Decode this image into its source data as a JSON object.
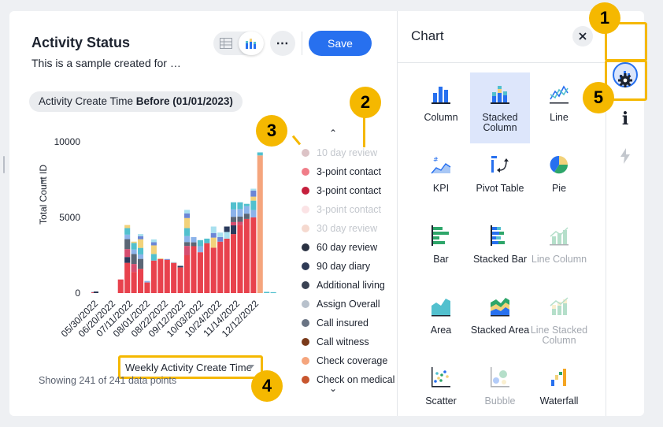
{
  "header": {
    "title": "Activity Status",
    "subtitle": "This is a sample created for …",
    "save_label": "Save",
    "more_label": "⋯"
  },
  "filter": {
    "field": "Activity Create Time",
    "condition": "Before (01/01/2023)"
  },
  "chart_data": {
    "type": "bar",
    "stacked": true,
    "ylabel": "Total Count ID",
    "yticks": [
      0,
      5000,
      10000
    ],
    "ylim": [
      0,
      10000
    ],
    "xticks": [
      "05/30/2022",
      "06/20/2022",
      "07/11/2022",
      "08/01/2022",
      "08/22/2022",
      "09/12/2022",
      "10/03/2022",
      "10/24/2022",
      "11/14/2022",
      "12/12/2022"
    ],
    "weeks": 28,
    "series_values": {
      "3-point contact": [
        50,
        0,
        0,
        0,
        900,
        2000,
        1400,
        1600,
        700,
        2150,
        2250,
        2200,
        2000,
        1700,
        2500,
        3100,
        2700,
        3300,
        3000,
        3400,
        3600,
        3900,
        4500,
        4900,
        5000,
        0,
        0,
        0
      ],
      "other": [
        30,
        0,
        0,
        0,
        0,
        2500,
        2000,
        2300,
        100,
        1400,
        50,
        50,
        50,
        100,
        3000,
        600,
        800,
        300,
        1400,
        600,
        800,
        2100,
        1500,
        1000,
        1900,
        0,
        0,
        0
      ],
      "Check coverage": [
        0,
        0,
        0,
        0,
        0,
        0,
        0,
        0,
        0,
        0,
        0,
        0,
        0,
        0,
        0,
        0,
        0,
        0,
        0,
        0,
        0,
        0,
        0,
        0,
        0,
        9100,
        0,
        0
      ],
      "tail": [
        0,
        0,
        0,
        0,
        0,
        0,
        0,
        0,
        0,
        0,
        0,
        0,
        0,
        0,
        0,
        0,
        0,
        0,
        0,
        0,
        0,
        0,
        0,
        0,
        0,
        200,
        80,
        60
      ]
    },
    "colors": {
      "3-point contact": "#e8424d",
      "Check coverage": "#f5a57d",
      "palette": [
        "#8cb3ea",
        "#52c0ce",
        "#f2d27a",
        "#6b86d6",
        "#a8e0ef",
        "#2a3a5c",
        "#d64d6f",
        "#5b6675"
      ]
    }
  },
  "legend": {
    "items": [
      {
        "label": "10 day review",
        "color": "#dcc3c6",
        "dim": true
      },
      {
        "label": "3-point contact",
        "color": "#f07d88",
        "dim": false
      },
      {
        "label": "3-point contact",
        "color": "#c51f3c",
        "dim": false
      },
      {
        "label": "3-point contact",
        "color": "#fbe3e5",
        "dim": true
      },
      {
        "label": "30 day review",
        "color": "#f5d9cf",
        "dim": true
      },
      {
        "label": "60 day review",
        "color": "#2a3142",
        "dim": false
      },
      {
        "label": "90 day diary",
        "color": "#2e3a55",
        "dim": false
      },
      {
        "label": "Additional living",
        "color": "#3a4253",
        "dim": false
      },
      {
        "label": "Assign Overall",
        "color": "#b8c1cc",
        "dim": false
      },
      {
        "label": "Call insured",
        "color": "#6a7484",
        "dim": false
      },
      {
        "label": "Call witness",
        "color": "#7a3a1a",
        "dim": false
      },
      {
        "label": "Check coverage",
        "color": "#f5a57d",
        "dim": false
      },
      {
        "label": "Check on medical",
        "color": "#c8562e",
        "dim": false
      }
    ]
  },
  "xaxis": {
    "selected": "Weekly Activity Create Time"
  },
  "footer": {
    "showing": "Showing 241 of 241 data points"
  },
  "chart_pane": {
    "title": "Chart",
    "types": [
      {
        "label": "Column",
        "icon": "column-icon",
        "selected": false,
        "disabled": false
      },
      {
        "label": "Stacked Column",
        "icon": "stacked-column-icon",
        "selected": true,
        "disabled": false
      },
      {
        "label": "Line",
        "icon": "line-icon",
        "selected": false,
        "disabled": false
      },
      {
        "label": "KPI",
        "icon": "kpi-icon",
        "selected": false,
        "disabled": false
      },
      {
        "label": "Pivot Table",
        "icon": "pivot-table-icon",
        "selected": false,
        "disabled": false
      },
      {
        "label": "Pie",
        "icon": "pie-icon",
        "selected": false,
        "disabled": false
      },
      {
        "label": "Bar",
        "icon": "bar-icon",
        "selected": false,
        "disabled": false
      },
      {
        "label": "Stacked Bar",
        "icon": "stacked-bar-icon",
        "selected": false,
        "disabled": false
      },
      {
        "label": "Line Column",
        "icon": "line-column-icon",
        "selected": false,
        "disabled": true
      },
      {
        "label": "Area",
        "icon": "area-icon",
        "selected": false,
        "disabled": false
      },
      {
        "label": "Stacked Area",
        "icon": "stacked-area-icon",
        "selected": false,
        "disabled": false
      },
      {
        "label": "Line Stacked Column",
        "icon": "line-stacked-column-icon",
        "selected": false,
        "disabled": true
      },
      {
        "label": "Scatter",
        "icon": "scatter-icon",
        "selected": false,
        "disabled": false
      },
      {
        "label": "Bubble",
        "icon": "bubble-icon",
        "selected": false,
        "disabled": true
      },
      {
        "label": "Waterfall",
        "icon": "waterfall-icon",
        "selected": false,
        "disabled": false
      }
    ]
  },
  "rail": {
    "info_label": "i"
  },
  "callouts": [
    "1",
    "2",
    "3",
    "4",
    "5"
  ],
  "accent": "#f5b800",
  "brand": "#2770ef"
}
